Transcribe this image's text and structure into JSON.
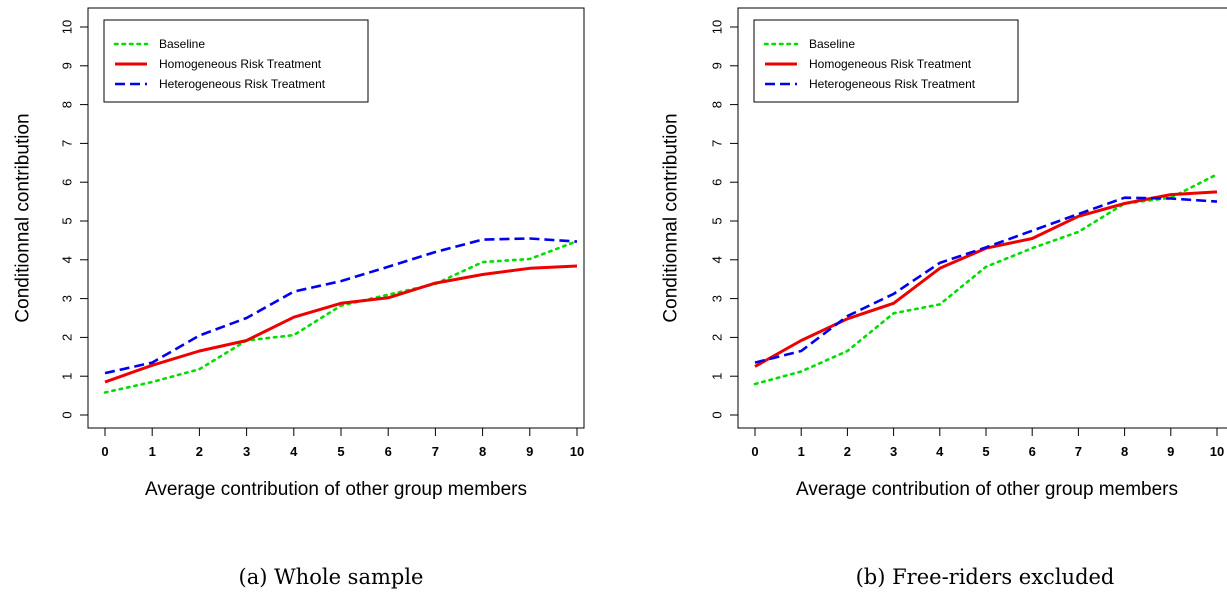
{
  "chart_data": [
    {
      "type": "line",
      "caption": "(a) Whole sample",
      "xlabel": "Average contribution of other group members",
      "ylabel": "Conditionnal contribution",
      "x": [
        0,
        1,
        2,
        3,
        4,
        5,
        6,
        7,
        8,
        9,
        10
      ],
      "xticks": [
        "0",
        "1",
        "2",
        "3",
        "4",
        "5",
        "6",
        "7",
        "8",
        "9",
        "10"
      ],
      "yticks": [
        "0",
        "1",
        "2",
        "3",
        "4",
        "5",
        "6",
        "7",
        "8",
        "9",
        "10"
      ],
      "xlim": [
        0,
        10
      ],
      "ylim": [
        0,
        10
      ],
      "legend_position": "top-left",
      "series": [
        {
          "name": "Baseline",
          "color": "#00dd00",
          "dash": "dotted",
          "values": [
            0.58,
            0.85,
            1.18,
            1.92,
            2.06,
            2.82,
            3.1,
            3.38,
            3.94,
            4.02,
            4.48
          ]
        },
        {
          "name": "Homogeneous Risk Treatment",
          "color": "#ee0000",
          "dash": "solid",
          "values": [
            0.85,
            1.28,
            1.65,
            1.92,
            2.52,
            2.88,
            3.02,
            3.4,
            3.62,
            3.78,
            3.84
          ]
        },
        {
          "name": "Heterogeneous Risk Treatment",
          "color": "#0000ee",
          "dash": "dashed",
          "values": [
            1.08,
            1.35,
            2.05,
            2.5,
            3.18,
            3.45,
            3.82,
            4.2,
            4.52,
            4.55,
            4.47
          ]
        }
      ]
    },
    {
      "type": "line",
      "caption": "(b) Free-riders excluded",
      "xlabel": "Average contribution of other group members",
      "ylabel": "Conditionnal contribution",
      "x": [
        0,
        1,
        2,
        3,
        4,
        5,
        6,
        7,
        8,
        9,
        10
      ],
      "xticks": [
        "0",
        "1",
        "2",
        "3",
        "4",
        "5",
        "6",
        "7",
        "8",
        "9",
        "10"
      ],
      "yticks": [
        "0",
        "1",
        "2",
        "3",
        "4",
        "5",
        "6",
        "7",
        "8",
        "9",
        "10"
      ],
      "xlim": [
        0,
        10
      ],
      "ylim": [
        0,
        10
      ],
      "legend_position": "top-left",
      "series": [
        {
          "name": "Baseline",
          "color": "#00dd00",
          "dash": "dotted",
          "values": [
            0.8,
            1.12,
            1.65,
            2.62,
            2.85,
            3.82,
            4.3,
            4.72,
            5.45,
            5.6,
            6.2
          ]
        },
        {
          "name": "Homogeneous Risk Treatment",
          "color": "#ee0000",
          "dash": "solid",
          "values": [
            1.25,
            1.92,
            2.48,
            2.88,
            3.78,
            4.3,
            4.55,
            5.12,
            5.45,
            5.68,
            5.75
          ]
        },
        {
          "name": "Heterogeneous Risk Treatment",
          "color": "#0000ee",
          "dash": "dashed",
          "values": [
            1.35,
            1.65,
            2.55,
            3.12,
            3.92,
            4.32,
            4.75,
            5.18,
            5.6,
            5.58,
            5.5
          ]
        }
      ]
    }
  ]
}
